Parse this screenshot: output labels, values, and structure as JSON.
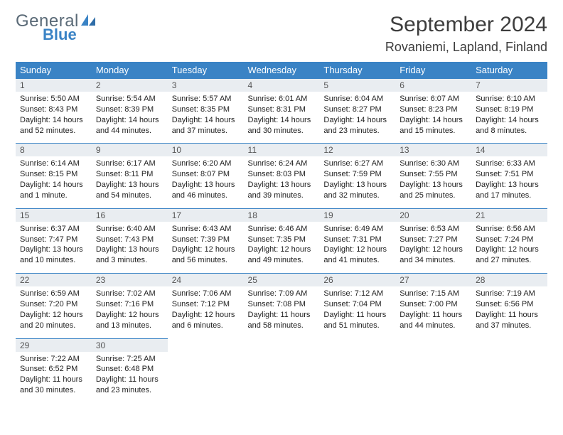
{
  "logo": {
    "text_general": "General",
    "text_blue": "Blue"
  },
  "title": "September 2024",
  "location": "Rovaniemi, Lapland, Finland",
  "colors": {
    "header_bg": "#3a83c5",
    "day_header_bg": "#e9edf1",
    "border": "#3a83c5"
  },
  "weekdays": [
    "Sunday",
    "Monday",
    "Tuesday",
    "Wednesday",
    "Thursday",
    "Friday",
    "Saturday"
  ],
  "weeks": [
    [
      {
        "n": "1",
        "sr": "Sunrise: 5:50 AM",
        "ss": "Sunset: 8:43 PM",
        "dl": "Daylight: 14 hours and 52 minutes."
      },
      {
        "n": "2",
        "sr": "Sunrise: 5:54 AM",
        "ss": "Sunset: 8:39 PM",
        "dl": "Daylight: 14 hours and 44 minutes."
      },
      {
        "n": "3",
        "sr": "Sunrise: 5:57 AM",
        "ss": "Sunset: 8:35 PM",
        "dl": "Daylight: 14 hours and 37 minutes."
      },
      {
        "n": "4",
        "sr": "Sunrise: 6:01 AM",
        "ss": "Sunset: 8:31 PM",
        "dl": "Daylight: 14 hours and 30 minutes."
      },
      {
        "n": "5",
        "sr": "Sunrise: 6:04 AM",
        "ss": "Sunset: 8:27 PM",
        "dl": "Daylight: 14 hours and 23 minutes."
      },
      {
        "n": "6",
        "sr": "Sunrise: 6:07 AM",
        "ss": "Sunset: 8:23 PM",
        "dl": "Daylight: 14 hours and 15 minutes."
      },
      {
        "n": "7",
        "sr": "Sunrise: 6:10 AM",
        "ss": "Sunset: 8:19 PM",
        "dl": "Daylight: 14 hours and 8 minutes."
      }
    ],
    [
      {
        "n": "8",
        "sr": "Sunrise: 6:14 AM",
        "ss": "Sunset: 8:15 PM",
        "dl": "Daylight: 14 hours and 1 minute."
      },
      {
        "n": "9",
        "sr": "Sunrise: 6:17 AM",
        "ss": "Sunset: 8:11 PM",
        "dl": "Daylight: 13 hours and 54 minutes."
      },
      {
        "n": "10",
        "sr": "Sunrise: 6:20 AM",
        "ss": "Sunset: 8:07 PM",
        "dl": "Daylight: 13 hours and 46 minutes."
      },
      {
        "n": "11",
        "sr": "Sunrise: 6:24 AM",
        "ss": "Sunset: 8:03 PM",
        "dl": "Daylight: 13 hours and 39 minutes."
      },
      {
        "n": "12",
        "sr": "Sunrise: 6:27 AM",
        "ss": "Sunset: 7:59 PM",
        "dl": "Daylight: 13 hours and 32 minutes."
      },
      {
        "n": "13",
        "sr": "Sunrise: 6:30 AM",
        "ss": "Sunset: 7:55 PM",
        "dl": "Daylight: 13 hours and 25 minutes."
      },
      {
        "n": "14",
        "sr": "Sunrise: 6:33 AM",
        "ss": "Sunset: 7:51 PM",
        "dl": "Daylight: 13 hours and 17 minutes."
      }
    ],
    [
      {
        "n": "15",
        "sr": "Sunrise: 6:37 AM",
        "ss": "Sunset: 7:47 PM",
        "dl": "Daylight: 13 hours and 10 minutes."
      },
      {
        "n": "16",
        "sr": "Sunrise: 6:40 AM",
        "ss": "Sunset: 7:43 PM",
        "dl": "Daylight: 13 hours and 3 minutes."
      },
      {
        "n": "17",
        "sr": "Sunrise: 6:43 AM",
        "ss": "Sunset: 7:39 PM",
        "dl": "Daylight: 12 hours and 56 minutes."
      },
      {
        "n": "18",
        "sr": "Sunrise: 6:46 AM",
        "ss": "Sunset: 7:35 PM",
        "dl": "Daylight: 12 hours and 49 minutes."
      },
      {
        "n": "19",
        "sr": "Sunrise: 6:49 AM",
        "ss": "Sunset: 7:31 PM",
        "dl": "Daylight: 12 hours and 41 minutes."
      },
      {
        "n": "20",
        "sr": "Sunrise: 6:53 AM",
        "ss": "Sunset: 7:27 PM",
        "dl": "Daylight: 12 hours and 34 minutes."
      },
      {
        "n": "21",
        "sr": "Sunrise: 6:56 AM",
        "ss": "Sunset: 7:24 PM",
        "dl": "Daylight: 12 hours and 27 minutes."
      }
    ],
    [
      {
        "n": "22",
        "sr": "Sunrise: 6:59 AM",
        "ss": "Sunset: 7:20 PM",
        "dl": "Daylight: 12 hours and 20 minutes."
      },
      {
        "n": "23",
        "sr": "Sunrise: 7:02 AM",
        "ss": "Sunset: 7:16 PM",
        "dl": "Daylight: 12 hours and 13 minutes."
      },
      {
        "n": "24",
        "sr": "Sunrise: 7:06 AM",
        "ss": "Sunset: 7:12 PM",
        "dl": "Daylight: 12 hours and 6 minutes."
      },
      {
        "n": "25",
        "sr": "Sunrise: 7:09 AM",
        "ss": "Sunset: 7:08 PM",
        "dl": "Daylight: 11 hours and 58 minutes."
      },
      {
        "n": "26",
        "sr": "Sunrise: 7:12 AM",
        "ss": "Sunset: 7:04 PM",
        "dl": "Daylight: 11 hours and 51 minutes."
      },
      {
        "n": "27",
        "sr": "Sunrise: 7:15 AM",
        "ss": "Sunset: 7:00 PM",
        "dl": "Daylight: 11 hours and 44 minutes."
      },
      {
        "n": "28",
        "sr": "Sunrise: 7:19 AM",
        "ss": "Sunset: 6:56 PM",
        "dl": "Daylight: 11 hours and 37 minutes."
      }
    ],
    [
      {
        "n": "29",
        "sr": "Sunrise: 7:22 AM",
        "ss": "Sunset: 6:52 PM",
        "dl": "Daylight: 11 hours and 30 minutes."
      },
      {
        "n": "30",
        "sr": "Sunrise: 7:25 AM",
        "ss": "Sunset: 6:48 PM",
        "dl": "Daylight: 11 hours and 23 minutes."
      },
      null,
      null,
      null,
      null,
      null
    ]
  ]
}
